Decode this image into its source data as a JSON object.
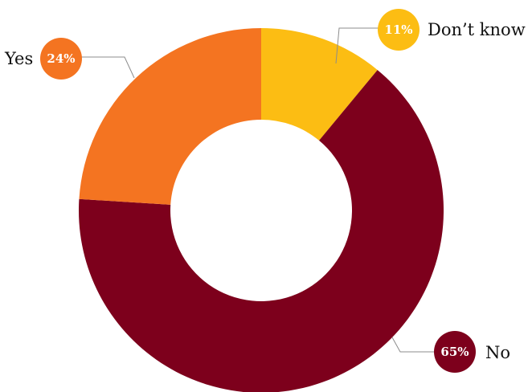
{
  "chart_data": {
    "type": "pie",
    "title": "",
    "categories": [
      "Don’t know",
      "No",
      "Yes"
    ],
    "values": [
      11,
      65,
      24
    ],
    "value_labels": [
      "11%",
      "65%",
      "24%"
    ],
    "colors": [
      "#fcbd13",
      "#7d001c",
      "#f47421"
    ],
    "donut": true,
    "legend": "none"
  }
}
